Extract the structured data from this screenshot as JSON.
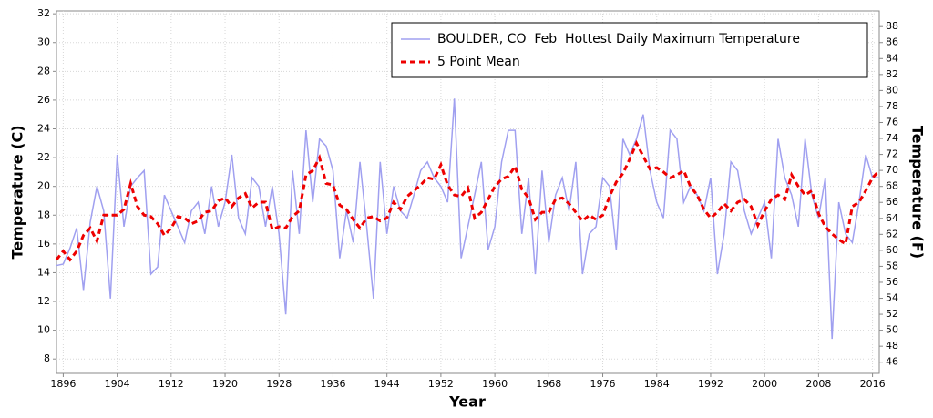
{
  "chart_data": {
    "type": "line",
    "xlabel": "Year",
    "ylabel": "Temperature (C)",
    "y2label": "Temperature (F)",
    "x": [
      1895,
      1896,
      1897,
      1898,
      1899,
      1900,
      1901,
      1902,
      1903,
      1904,
      1905,
      1906,
      1907,
      1908,
      1909,
      1910,
      1911,
      1912,
      1913,
      1914,
      1915,
      1916,
      1917,
      1918,
      1919,
      1920,
      1921,
      1922,
      1923,
      1924,
      1925,
      1926,
      1927,
      1928,
      1929,
      1930,
      1931,
      1932,
      1933,
      1934,
      1935,
      1936,
      1937,
      1938,
      1939,
      1940,
      1941,
      1942,
      1943,
      1944,
      1945,
      1946,
      1947,
      1948,
      1949,
      1950,
      1951,
      1952,
      1953,
      1954,
      1955,
      1956,
      1957,
      1958,
      1959,
      1960,
      1961,
      1962,
      1963,
      1964,
      1965,
      1966,
      1967,
      1968,
      1969,
      1970,
      1971,
      1972,
      1973,
      1974,
      1975,
      1976,
      1977,
      1978,
      1979,
      1980,
      1981,
      1982,
      1983,
      1984,
      1985,
      1986,
      1987,
      1988,
      1989,
      1990,
      1991,
      1992,
      1993,
      1994,
      1995,
      1996,
      1997,
      1998,
      1999,
      2000,
      2001,
      2002,
      2003,
      2004,
      2005,
      2006,
      2007,
      2008,
      2009,
      2010,
      2011,
      2012,
      2013,
      2014,
      2015,
      2016,
      2017
    ],
    "series": [
      {
        "name": "BOULDER, CO  Feb  Hottest Daily Maximum Temperature",
        "color": "#a0a0f0",
        "style": "solid",
        "values": [
          14.5,
          14.6,
          15.7,
          17.1,
          12.8,
          17.5,
          20.0,
          18.3,
          12.2,
          22.2,
          17.2,
          20.0,
          20.6,
          21.1,
          13.9,
          14.4,
          19.4,
          18.3,
          17.2,
          16.1,
          18.3,
          18.9,
          16.7,
          20.0,
          17.2,
          18.9,
          22.2,
          17.8,
          16.7,
          20.6,
          20.0,
          17.2,
          20.0,
          16.7,
          11.1,
          21.1,
          16.7,
          23.9,
          18.9,
          23.3,
          22.8,
          21.1,
          15.0,
          18.3,
          16.1,
          21.7,
          17.2,
          12.2,
          21.7,
          16.7,
          20.0,
          18.3,
          17.8,
          19.4,
          21.1,
          21.7,
          20.6,
          20.0,
          18.9,
          26.1,
          15.0,
          17.2,
          19.4,
          21.7,
          15.6,
          17.2,
          21.7,
          23.9,
          23.9,
          16.7,
          20.6,
          13.9,
          21.1,
          16.1,
          19.4,
          20.6,
          18.3,
          21.7,
          13.9,
          16.7,
          17.2,
          20.6,
          20.0,
          15.6,
          23.3,
          22.2,
          23.3,
          25.0,
          21.1,
          18.9,
          17.8,
          23.9,
          23.3,
          18.9,
          20.0,
          19.4,
          18.3,
          20.6,
          13.9,
          16.7,
          21.7,
          21.1,
          18.3,
          16.7,
          17.8,
          18.9,
          15.0,
          23.3,
          20.6,
          19.4,
          17.2,
          23.3,
          19.4,
          17.8,
          20.6,
          9.4,
          18.9,
          16.7,
          16.1,
          18.9,
          22.2,
          20.6,
          20.6
        ]
      },
      {
        "name": "5 Point Mean",
        "color": "#ee0000",
        "style": "dashed",
        "values": [
          14.9,
          15.5,
          14.9,
          15.5,
          16.6,
          17.1,
          16.2,
          18.0,
          18.0,
          18.0,
          18.4,
          20.2,
          18.6,
          18.0,
          17.9,
          17.4,
          16.6,
          17.1,
          17.9,
          17.8,
          17.4,
          17.6,
          18.2,
          18.3,
          19.0,
          19.2,
          18.6,
          19.2,
          19.5,
          18.5,
          18.9,
          18.9,
          17.0,
          17.2,
          17.1,
          17.9,
          18.3,
          20.8,
          21.1,
          22.0,
          20.2,
          20.1,
          18.7,
          18.4,
          17.7,
          17.1,
          17.8,
          17.9,
          17.6,
          17.8,
          18.9,
          18.4,
          19.3,
          19.7,
          20.1,
          20.6,
          20.5,
          21.5,
          20.1,
          19.4,
          19.3,
          19.9,
          17.8,
          18.2,
          19.1,
          20.0,
          20.5,
          20.7,
          21.4,
          19.8,
          19.2,
          17.7,
          18.2,
          18.2,
          19.1,
          19.2,
          18.8,
          18.2,
          17.6,
          18.0,
          17.7,
          18.0,
          19.3,
          20.3,
          20.9,
          21.9,
          23.0,
          22.1,
          21.2,
          21.3,
          21.0,
          20.6,
          20.8,
          21.1,
          20.0,
          19.4,
          18.4,
          17.8,
          18.2,
          18.8,
          18.3,
          18.9,
          19.1,
          18.6,
          17.3,
          18.3,
          19.1,
          19.4,
          19.1,
          20.8,
          20.0,
          19.4,
          19.7,
          18.1,
          17.2,
          16.7,
          16.3,
          16.0,
          18.6,
          18.9,
          19.7,
          20.6,
          21.1
        ]
      }
    ],
    "xlim": [
      1895,
      2017
    ],
    "xticks": [
      1896,
      1904,
      1912,
      1920,
      1928,
      1936,
      1944,
      1952,
      1960,
      1968,
      1976,
      1984,
      1992,
      2000,
      2008,
      2016
    ],
    "ylim": [
      7,
      32.2
    ],
    "yticks": [
      8,
      10,
      12,
      14,
      16,
      18,
      20,
      22,
      24,
      26,
      28,
      30,
      32
    ],
    "y2lim": [
      44.6,
      89.96
    ],
    "y2ticks": [
      46,
      48,
      50,
      52,
      54,
      56,
      58,
      60,
      62,
      64,
      66,
      68,
      70,
      72,
      74,
      76,
      78,
      80,
      82,
      84,
      86,
      88
    ],
    "grid": true,
    "legend": "upper right"
  }
}
